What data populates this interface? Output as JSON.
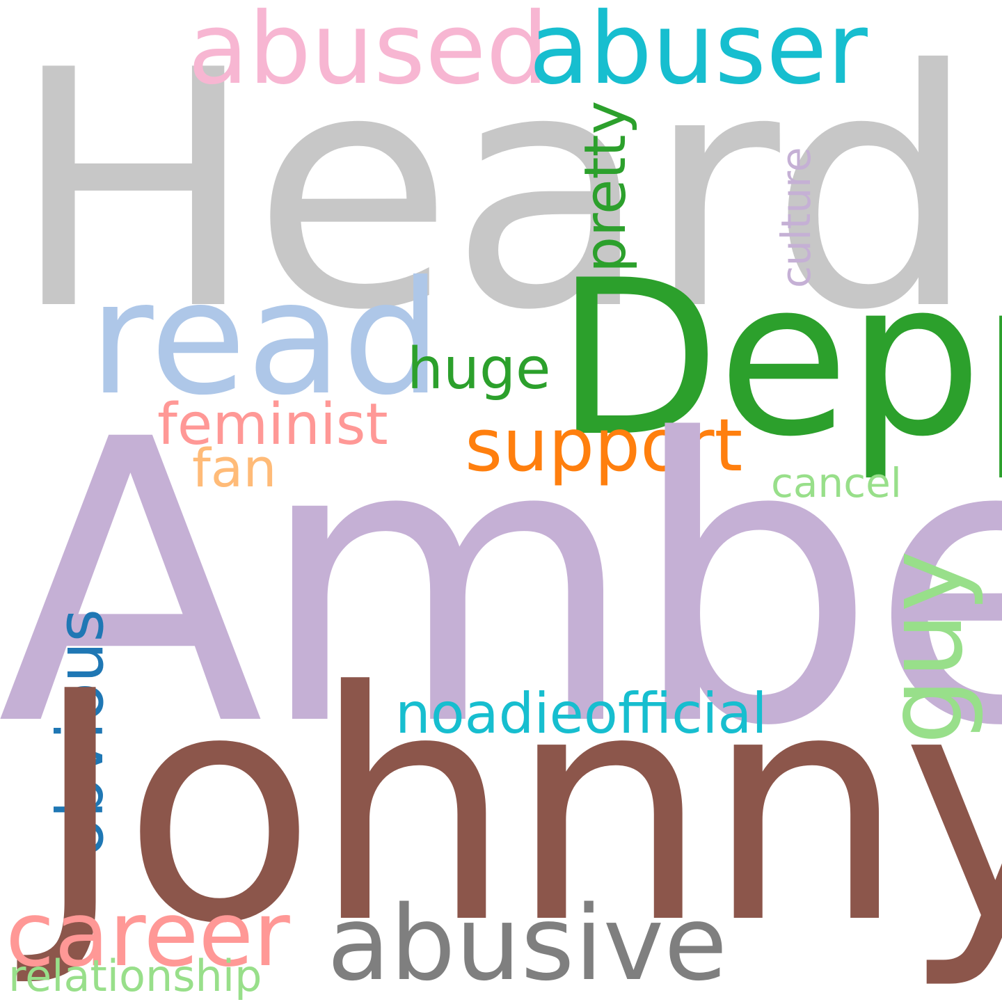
{
  "words": [
    {
      "id": "heard",
      "text": "Heard",
      "color": "#c7c7c7",
      "orientation": "horizontal"
    },
    {
      "id": "abused",
      "text": "abused",
      "color": "#f7b6d2",
      "orientation": "horizontal"
    },
    {
      "id": "abuser",
      "text": "abuser",
      "color": "#17becf",
      "orientation": "horizontal"
    },
    {
      "id": "pretty",
      "text": "pretty",
      "color": "#2ca02c",
      "orientation": "vertical"
    },
    {
      "id": "culture",
      "text": "culture",
      "color": "#c5b0d5",
      "orientation": "vertical"
    },
    {
      "id": "depp",
      "text": "Depp",
      "color": "#2ca02c",
      "orientation": "horizontal"
    },
    {
      "id": "read",
      "text": "read",
      "color": "#aec7e8",
      "orientation": "horizontal"
    },
    {
      "id": "huge",
      "text": "huge",
      "color": "#2ca02c",
      "orientation": "horizontal"
    },
    {
      "id": "feminist",
      "text": "feminist",
      "color": "#ff9896",
      "orientation": "horizontal"
    },
    {
      "id": "support",
      "text": "support",
      "color": "#ff7f0e",
      "orientation": "horizontal"
    },
    {
      "id": "fan",
      "text": "fan",
      "color": "#ffbb78",
      "orientation": "horizontal"
    },
    {
      "id": "cancel",
      "text": "cancel",
      "color": "#98df8a",
      "orientation": "horizontal"
    },
    {
      "id": "amber",
      "text": "Amber",
      "color": "#c5b0d5",
      "orientation": "horizontal"
    },
    {
      "id": "guy",
      "text": "guy",
      "color": "#98df8a",
      "orientation": "vertical"
    },
    {
      "id": "noadieofficial",
      "text": "noadieofficial",
      "color": "#17becf",
      "orientation": "horizontal"
    },
    {
      "id": "obvious",
      "text": "obvious",
      "color": "#1f77b4",
      "orientation": "vertical"
    },
    {
      "id": "johnny",
      "text": "Johnny",
      "color": "#8c564b",
      "orientation": "horizontal"
    },
    {
      "id": "career",
      "text": "career",
      "color": "#ff9896",
      "orientation": "horizontal"
    },
    {
      "id": "abusive",
      "text": "abusive",
      "color": "#7f7f7f",
      "orientation": "horizontal"
    },
    {
      "id": "relationship",
      "text": "relationship",
      "color": "#98df8a",
      "orientation": "horizontal"
    }
  ]
}
